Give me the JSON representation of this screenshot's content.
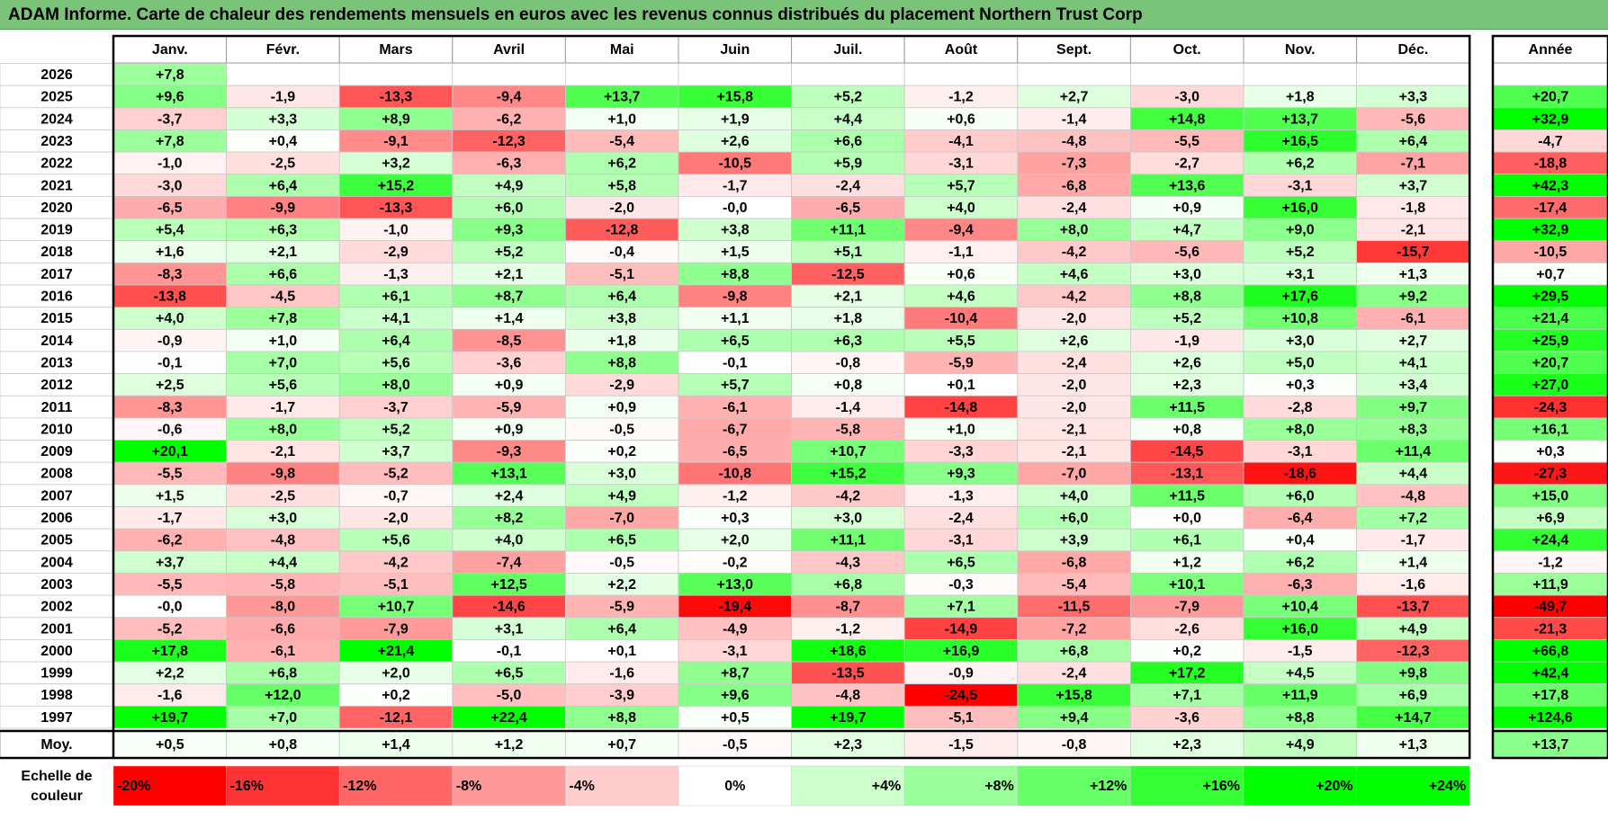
{
  "title": "ADAM Informe. Carte de chaleur des rendements mensuels en euros avec les revenus connus distribués du placement Northern Trust Corp",
  "chart_data": {
    "type": "heatmap",
    "months": [
      "Janv.",
      "Févr.",
      "Mars",
      "Avril",
      "Mai",
      "Juin",
      "Juil.",
      "Août",
      "Sept.",
      "Oct.",
      "Nov.",
      "Déc."
    ],
    "year_header": "Année",
    "rows": [
      {
        "year": "2026",
        "values": [
          "+7,8",
          "",
          "",
          "",
          "",
          "",
          "",
          "",
          "",
          "",
          "",
          ""
        ],
        "annual": ""
      },
      {
        "year": "2025",
        "values": [
          "+9,6",
          "-1,9",
          "-13,3",
          "-9,4",
          "+13,7",
          "+15,8",
          "+5,2",
          "-1,2",
          "+2,7",
          "-3,0",
          "+1,8",
          "+3,3"
        ],
        "annual": "+20,7"
      },
      {
        "year": "2024",
        "values": [
          "-3,7",
          "+3,3",
          "+8,9",
          "-6,2",
          "+1,0",
          "+1,9",
          "+4,4",
          "+0,6",
          "-1,4",
          "+14,8",
          "+13,7",
          "-5,6"
        ],
        "annual": "+32,9"
      },
      {
        "year": "2023",
        "values": [
          "+7,8",
          "+0,4",
          "-9,1",
          "-12,3",
          "-5,4",
          "+2,6",
          "+6,6",
          "-4,1",
          "-4,8",
          "-5,5",
          "+16,5",
          "+6,4"
        ],
        "annual": "-4,7"
      },
      {
        "year": "2022",
        "values": [
          "-1,0",
          "-2,5",
          "+3,2",
          "-6,3",
          "+6,2",
          "-10,5",
          "+5,9",
          "-3,1",
          "-7,3",
          "-2,7",
          "+6,2",
          "-7,1"
        ],
        "annual": "-18,8"
      },
      {
        "year": "2021",
        "values": [
          "-3,0",
          "+6,4",
          "+15,2",
          "+4,9",
          "+5,8",
          "-1,7",
          "-2,4",
          "+5,7",
          "-6,8",
          "+13,6",
          "-3,1",
          "+3,7"
        ],
        "annual": "+42,3"
      },
      {
        "year": "2020",
        "values": [
          "-6,5",
          "-9,9",
          "-13,3",
          "+6,0",
          "-2,0",
          "-0,0",
          "-6,5",
          "+4,0",
          "-2,4",
          "+0,9",
          "+16,0",
          "-1,8"
        ],
        "annual": "-17,4"
      },
      {
        "year": "2019",
        "values": [
          "+5,4",
          "+6,3",
          "-1,0",
          "+9,3",
          "-12,8",
          "+3,8",
          "+11,1",
          "-9,4",
          "+8,0",
          "+4,7",
          "+9,0",
          "-2,1"
        ],
        "annual": "+32,9"
      },
      {
        "year": "2018",
        "values": [
          "+1,6",
          "+2,1",
          "-2,9",
          "+5,2",
          "-0,4",
          "+1,5",
          "+5,1",
          "-1,1",
          "-4,2",
          "-5,6",
          "+5,2",
          "-15,7"
        ],
        "annual": "-10,5"
      },
      {
        "year": "2017",
        "values": [
          "-8,3",
          "+6,6",
          "-1,3",
          "+2,1",
          "-5,1",
          "+8,8",
          "-12,5",
          "+0,6",
          "+4,6",
          "+3,0",
          "+3,1",
          "+1,3"
        ],
        "annual": "+0,7"
      },
      {
        "year": "2016",
        "values": [
          "-13,8",
          "-4,5",
          "+6,1",
          "+8,7",
          "+6,4",
          "-9,8",
          "+2,1",
          "+4,6",
          "-4,2",
          "+8,8",
          "+17,6",
          "+9,2"
        ],
        "annual": "+29,5"
      },
      {
        "year": "2015",
        "values": [
          "+4,0",
          "+7,8",
          "+4,1",
          "+1,4",
          "+3,8",
          "+1,1",
          "+1,8",
          "-10,4",
          "-2,0",
          "+5,2",
          "+10,8",
          "-6,1"
        ],
        "annual": "+21,4"
      },
      {
        "year": "2014",
        "values": [
          "-0,9",
          "+1,0",
          "+6,4",
          "-8,5",
          "+1,8",
          "+6,5",
          "+6,3",
          "+5,5",
          "+2,6",
          "-1,9",
          "+3,0",
          "+2,7"
        ],
        "annual": "+25,9"
      },
      {
        "year": "2013",
        "values": [
          "-0,1",
          "+7,0",
          "+5,6",
          "-3,6",
          "+8,8",
          "-0,1",
          "-0,8",
          "-5,9",
          "-2,4",
          "+2,6",
          "+5,0",
          "+4,1"
        ],
        "annual": "+20,7"
      },
      {
        "year": "2012",
        "values": [
          "+2,5",
          "+5,6",
          "+8,0",
          "+0,9",
          "-2,9",
          "+5,7",
          "+0,8",
          "+0,1",
          "-2,0",
          "+2,3",
          "+0,3",
          "+3,4"
        ],
        "annual": "+27,0"
      },
      {
        "year": "2011",
        "values": [
          "-8,3",
          "-1,7",
          "-3,7",
          "-5,9",
          "+0,9",
          "-6,1",
          "-1,4",
          "-14,8",
          "-2,0",
          "+11,5",
          "-2,8",
          "+9,7"
        ],
        "annual": "-24,3"
      },
      {
        "year": "2010",
        "values": [
          "-0,6",
          "+8,0",
          "+5,2",
          "+0,9",
          "-0,5",
          "-6,7",
          "-5,8",
          "+1,0",
          "-2,1",
          "+0,8",
          "+8,0",
          "+8,3"
        ],
        "annual": "+16,1"
      },
      {
        "year": "2009",
        "values": [
          "+20,1",
          "-2,1",
          "+3,7",
          "-9,3",
          "+0,2",
          "-6,5",
          "+10,7",
          "-3,3",
          "-2,1",
          "-14,5",
          "-3,1",
          "+11,4"
        ],
        "annual": "+0,3"
      },
      {
        "year": "2008",
        "values": [
          "-5,5",
          "-9,8",
          "-5,2",
          "+13,1",
          "+3,0",
          "-10,8",
          "+15,2",
          "+9,3",
          "-7,0",
          "-13,1",
          "-18,6",
          "+4,4"
        ],
        "annual": "-27,3"
      },
      {
        "year": "2007",
        "values": [
          "+1,5",
          "-2,5",
          "-0,7",
          "+2,4",
          "+4,9",
          "-1,2",
          "-4,2",
          "-1,3",
          "+4,0",
          "+11,5",
          "+6,0",
          "-4,8"
        ],
        "annual": "+15,0"
      },
      {
        "year": "2006",
        "values": [
          "-1,7",
          "+3,0",
          "-2,0",
          "+8,2",
          "-7,0",
          "+0,3",
          "+3,0",
          "-2,4",
          "+6,0",
          "+0,0",
          "-6,4",
          "+7,2"
        ],
        "annual": "+6,9"
      },
      {
        "year": "2005",
        "values": [
          "-6,2",
          "-4,8",
          "+5,6",
          "+4,0",
          "+6,5",
          "+2,0",
          "+11,1",
          "-3,1",
          "+3,9",
          "+6,1",
          "+0,4",
          "-1,7"
        ],
        "annual": "+24,4"
      },
      {
        "year": "2004",
        "values": [
          "+3,7",
          "+4,4",
          "-4,2",
          "-7,4",
          "-0,5",
          "-0,2",
          "-4,3",
          "+6,5",
          "-6,8",
          "+1,2",
          "+6,2",
          "+1,4"
        ],
        "annual": "-1,2"
      },
      {
        "year": "2003",
        "values": [
          "-5,5",
          "-5,8",
          "-5,1",
          "+12,5",
          "+2,2",
          "+13,0",
          "+6,8",
          "-0,3",
          "-5,4",
          "+10,1",
          "-6,3",
          "-1,6"
        ],
        "annual": "+11,9"
      },
      {
        "year": "2002",
        "values": [
          "-0,0",
          "-8,0",
          "+10,7",
          "-14,6",
          "-5,9",
          "-19,4",
          "-8,7",
          "+7,1",
          "-11,5",
          "-7,9",
          "+10,4",
          "-13,7"
        ],
        "annual": "-49,7"
      },
      {
        "year": "2001",
        "values": [
          "-5,2",
          "-6,6",
          "-7,9",
          "+3,1",
          "+6,4",
          "-4,9",
          "-1,2",
          "-14,9",
          "-7,2",
          "-2,6",
          "+16,0",
          "+4,9"
        ],
        "annual": "-21,3"
      },
      {
        "year": "2000",
        "values": [
          "+17,8",
          "-6,1",
          "+21,4",
          "-0,1",
          "+0,1",
          "-3,1",
          "+18,6",
          "+16,9",
          "+6,8",
          "+0,2",
          "-1,5",
          "-12,3"
        ],
        "annual": "+66,8"
      },
      {
        "year": "1999",
        "values": [
          "+2,2",
          "+6,8",
          "+2,0",
          "+6,5",
          "-1,6",
          "+8,7",
          "-13,5",
          "-0,9",
          "-2,4",
          "+17,2",
          "+4,5",
          "+9,8"
        ],
        "annual": "+42,4"
      },
      {
        "year": "1998",
        "values": [
          "-1,6",
          "+12,0",
          "+0,2",
          "-5,0",
          "-3,9",
          "+9,6",
          "-4,8",
          "-24,5",
          "+15,8",
          "+7,1",
          "+11,9",
          "+6,9"
        ],
        "annual": "+17,8"
      },
      {
        "year": "1997",
        "values": [
          "+19,7",
          "+7,0",
          "-12,1",
          "+22,4",
          "+8,8",
          "+0,5",
          "+19,7",
          "-5,1",
          "+9,4",
          "-3,6",
          "+8,8",
          "+14,7"
        ],
        "annual": "+124,6"
      }
    ],
    "average": {
      "label": "Moy.",
      "values": [
        "+0,5",
        "+0,8",
        "+1,4",
        "+1,2",
        "+0,7",
        "-0,5",
        "+2,3",
        "-1,5",
        "-0,8",
        "+2,3",
        "+4,9",
        "+1,3"
      ],
      "annual": "+13,7"
    },
    "scale": {
      "label_line1": "Echelle de",
      "label_line2": "couleur",
      "steps": [
        {
          "label": "-20%",
          "value": -20
        },
        {
          "label": "-16%",
          "value": -16
        },
        {
          "label": "-12%",
          "value": -12
        },
        {
          "label": "-8%",
          "value": -8
        },
        {
          "label": "-4%",
          "value": -4
        },
        {
          "label": "0%",
          "value": 0
        },
        {
          "label": "+4%",
          "value": 4
        },
        {
          "label": "+8%",
          "value": 8
        },
        {
          "label": "+12%",
          "value": 12
        },
        {
          "label": "+16%",
          "value": 16
        },
        {
          "label": "+20%",
          "value": 20
        },
        {
          "label": "+24%",
          "value": 24
        }
      ]
    }
  }
}
